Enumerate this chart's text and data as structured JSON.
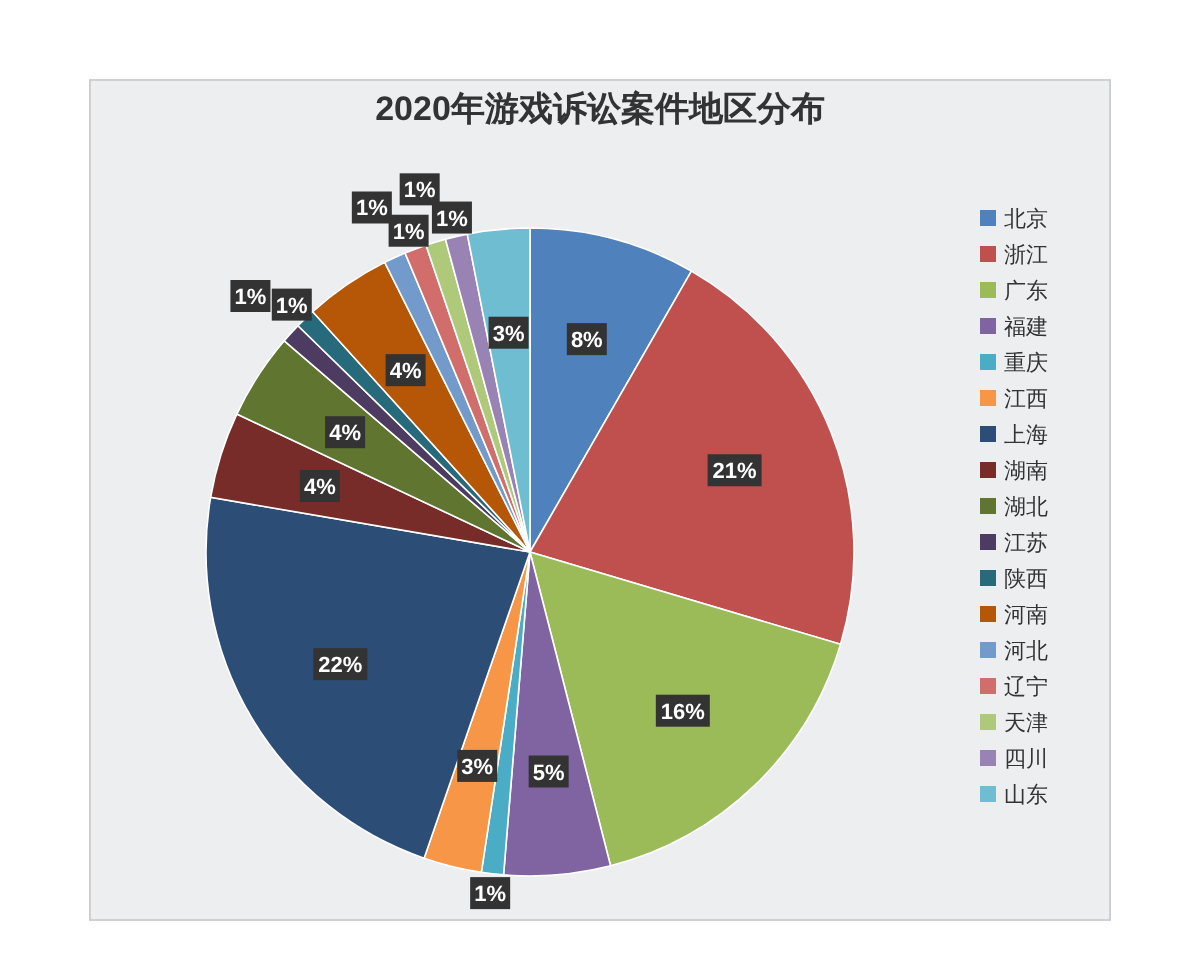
{
  "chart_data": {
    "type": "pie",
    "title": "2020年游戏诉讼案件地区分布",
    "categories": [
      "北京",
      "浙江",
      "广东",
      "福建",
      "重庆",
      "江西",
      "上海",
      "湖南",
      "湖北",
      "江苏",
      "陕西",
      "河南",
      "河北",
      "辽宁",
      "天津",
      "四川",
      "山东"
    ],
    "values": [
      8.3,
      21.3,
      16.4,
      5.3,
      1.1,
      2.9,
      22.4,
      4.3,
      4.3,
      1.0,
      1.0,
      4.3,
      1.1,
      1.1,
      1.0,
      1.1,
      3.1
    ],
    "value_labels": [
      "8%",
      "21%",
      "16%",
      "5%",
      "1%",
      "3%",
      "22%",
      "4%",
      "4%",
      "1%",
      "1%",
      "4%",
      "1%",
      "1%",
      "1%",
      "1%",
      "3%"
    ],
    "colors": [
      "#4f81bd",
      "#c0504d",
      "#9bbb59",
      "#8064a2",
      "#4bacc6",
      "#f79646",
      "#2c4d75",
      "#772c2a",
      "#5f7530",
      "#4d3b62",
      "#276a7c",
      "#b65708",
      "#729aca",
      "#d16e6c",
      "#afc97a",
      "#9983b5",
      "#6fbdd1"
    ],
    "legend": "right"
  }
}
